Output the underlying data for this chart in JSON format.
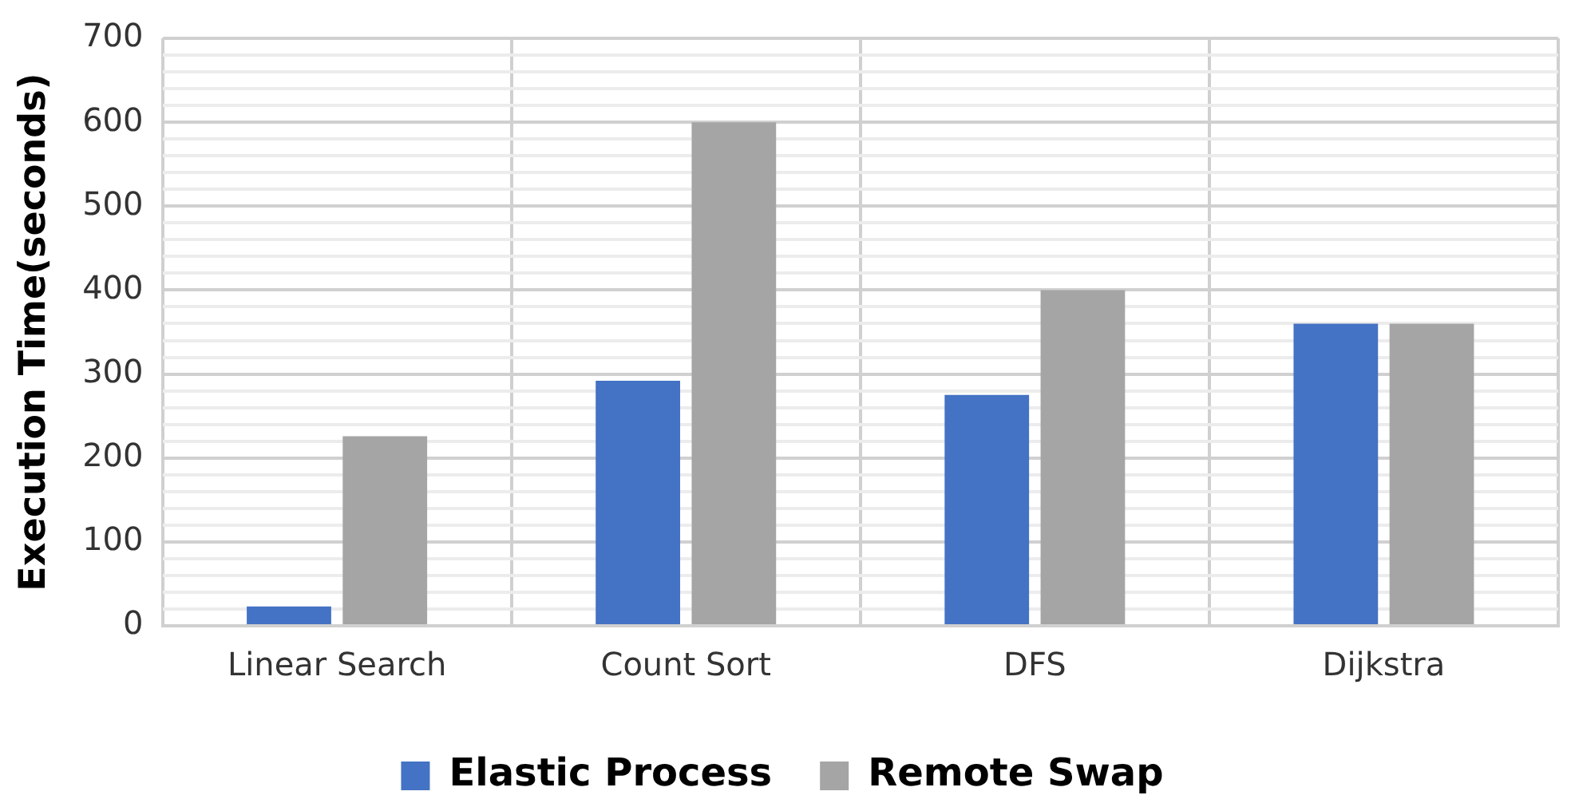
{
  "chart_data": {
    "type": "bar",
    "ylabel": "Execution Time(seconds)",
    "categories": [
      "Linear Search",
      "Count Sort",
      "DFS",
      "Dijkstra"
    ],
    "series": [
      {
        "name": "Elastic Process",
        "color": "#4472c4",
        "values": [
          23,
          292,
          275,
          360
        ]
      },
      {
        "name": "Remote Swap",
        "color": "#a5a5a5",
        "values": [
          226,
          600,
          400,
          360
        ]
      }
    ],
    "ylim": [
      0,
      700
    ],
    "yticks": [
      0,
      {
        "value": 20,
        "label": null
      },
      {
        "value": 40,
        "label": null
      },
      {
        "value": 60,
        "label": null
      },
      {
        "value": 80,
        "label": null
      },
      100,
      {
        "value": 120,
        "label": null
      },
      {
        "value": 140,
        "label": null
      },
      {
        "value": 160,
        "label": null
      },
      {
        "value": 180,
        "label": null
      },
      200,
      {
        "value": 220,
        "label": null
      },
      {
        "value": 240,
        "label": null
      },
      {
        "value": 260,
        "label": null
      },
      {
        "value": 280,
        "label": null
      },
      300,
      {
        "value": 320,
        "label": null
      },
      {
        "value": 340,
        "label": null
      },
      {
        "value": 360,
        "label": null
      },
      {
        "value": 380,
        "label": null
      },
      400,
      {
        "value": 420,
        "label": null
      },
      {
        "value": 440,
        "label": null
      },
      {
        "value": 460,
        "label": null
      },
      {
        "value": 480,
        "label": null
      },
      500,
      {
        "value": 520,
        "label": null
      },
      {
        "value": 540,
        "label": null
      },
      {
        "value": 560,
        "label": null
      },
      {
        "value": 580,
        "label": null
      },
      600,
      {
        "value": 620,
        "label": null
      },
      {
        "value": 640,
        "label": null
      },
      {
        "value": 660,
        "label": null
      },
      {
        "value": 680,
        "label": null
      },
      700
    ],
    "grid": true,
    "legend": "bottom"
  }
}
